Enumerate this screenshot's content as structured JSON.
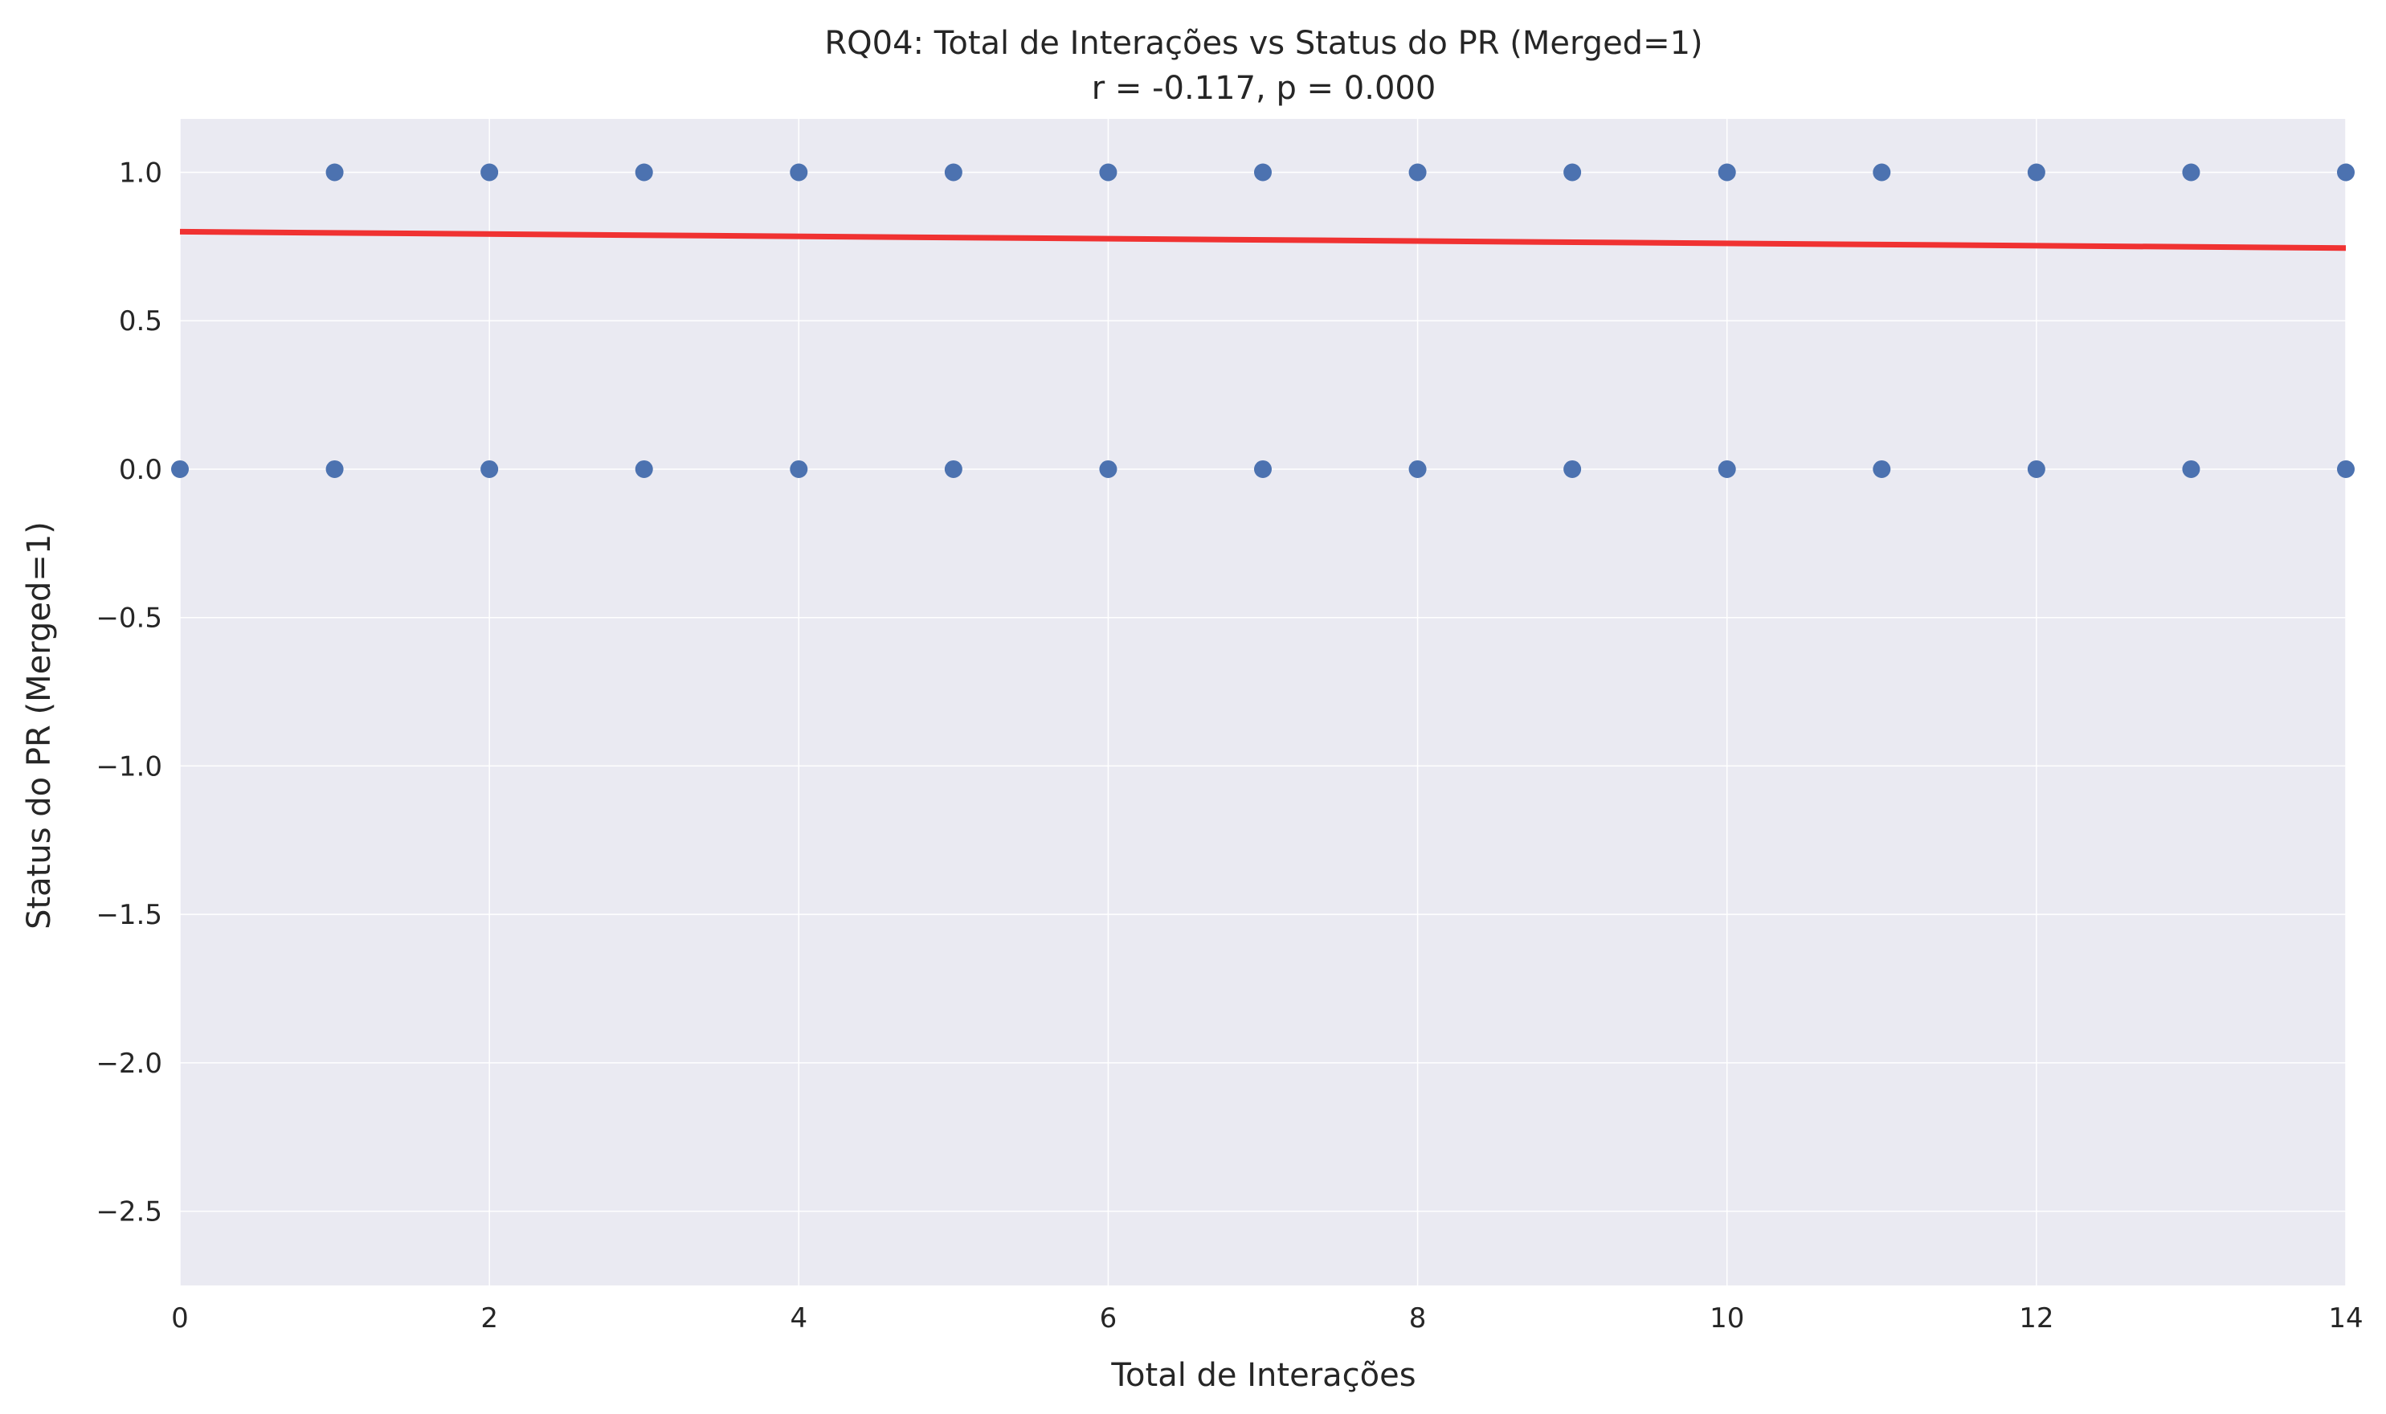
{
  "chart_data": {
    "type": "scatter",
    "title": "RQ04: Total de Interações vs Status do PR (Merged=1)",
    "subtitle": "r = -0.117, p = 0.000",
    "xlabel": "Total de Interações",
    "ylabel": "Status do PR (Merged=1)",
    "xlim": [
      0,
      14
    ],
    "ylim": [
      -2.75,
      1.18
    ],
    "xticks": [
      0,
      2,
      4,
      6,
      8,
      10,
      12,
      14
    ],
    "xtick_labels": [
      "0",
      "2",
      "4",
      "6",
      "8",
      "10",
      "12",
      "14"
    ],
    "yticks": [
      1.0,
      0.5,
      0.0,
      -0.5,
      -1.0,
      -1.5,
      -2.0,
      -2.5
    ],
    "ytick_labels": [
      "1.0",
      "0.5",
      "0.0",
      "−0.5",
      "−1.0",
      "−1.5",
      "−2.0",
      "−2.5"
    ],
    "grid": true,
    "points": [
      {
        "x": 0,
        "y": 0
      },
      {
        "x": 1,
        "y": 1
      },
      {
        "x": 1,
        "y": 0
      },
      {
        "x": 2,
        "y": 1
      },
      {
        "x": 2,
        "y": 0
      },
      {
        "x": 3,
        "y": 1
      },
      {
        "x": 3,
        "y": 0
      },
      {
        "x": 4,
        "y": 1
      },
      {
        "x": 4,
        "y": 0
      },
      {
        "x": 5,
        "y": 1
      },
      {
        "x": 5,
        "y": 0
      },
      {
        "x": 6,
        "y": 1
      },
      {
        "x": 6,
        "y": 0
      },
      {
        "x": 7,
        "y": 1
      },
      {
        "x": 7,
        "y": 0
      },
      {
        "x": 8,
        "y": 1
      },
      {
        "x": 8,
        "y": 0
      },
      {
        "x": 9,
        "y": 1
      },
      {
        "x": 9,
        "y": 0
      },
      {
        "x": 10,
        "y": 1
      },
      {
        "x": 10,
        "y": 0
      },
      {
        "x": 11,
        "y": 1
      },
      {
        "x": 11,
        "y": 0
      },
      {
        "x": 12,
        "y": 1
      },
      {
        "x": 12,
        "y": 0
      },
      {
        "x": 13,
        "y": 1
      },
      {
        "x": 13,
        "y": 0
      },
      {
        "x": 14,
        "y": 1
      },
      {
        "x": 14,
        "y": 0
      }
    ],
    "trend_line": {
      "x": [
        0,
        14
      ],
      "y": [
        0.8,
        0.745
      ]
    },
    "colors": {
      "background": "#eaeaf2",
      "grid": "#ffffff",
      "points": "#4c72b0",
      "trend_line": "#f03232"
    }
  }
}
